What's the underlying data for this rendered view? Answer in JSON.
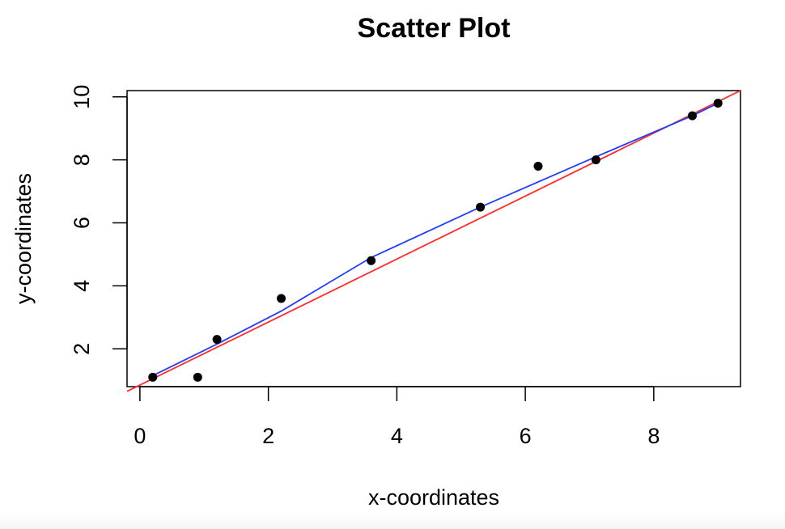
{
  "chart_data": {
    "type": "scatter",
    "title": "Scatter Plot",
    "xlabel": "x-coordinates",
    "ylabel": "y-coordinates",
    "xlim": [
      -0.2,
      9.35
    ],
    "ylim": [
      0.8,
      10.2
    ],
    "xticks": [
      0,
      2,
      4,
      6,
      8
    ],
    "yticks": [
      2,
      4,
      6,
      8,
      10
    ],
    "points": {
      "x": [
        0.2,
        0.9,
        1.2,
        2.2,
        3.6,
        5.3,
        6.2,
        7.1,
        8.6,
        9.0
      ],
      "y": [
        1.1,
        1.1,
        2.3,
        3.6,
        4.8,
        6.5,
        7.8,
        8.0,
        9.4,
        9.8
      ],
      "color": "#000000"
    },
    "lines": [
      {
        "kind": "regression",
        "color": "#ff2a2a",
        "intercept": 0.85,
        "slope": 1.0
      },
      {
        "kind": "smooth",
        "color": "#1f3cff",
        "x": [
          0.2,
          1.2,
          2.2,
          3.6,
          5.3,
          6.2,
          7.1,
          8.6,
          9.0
        ],
        "y": [
          1.15,
          2.15,
          3.2,
          4.9,
          6.5,
          7.3,
          8.1,
          9.4,
          9.8
        ]
      }
    ],
    "grid": false,
    "legend": "none"
  }
}
